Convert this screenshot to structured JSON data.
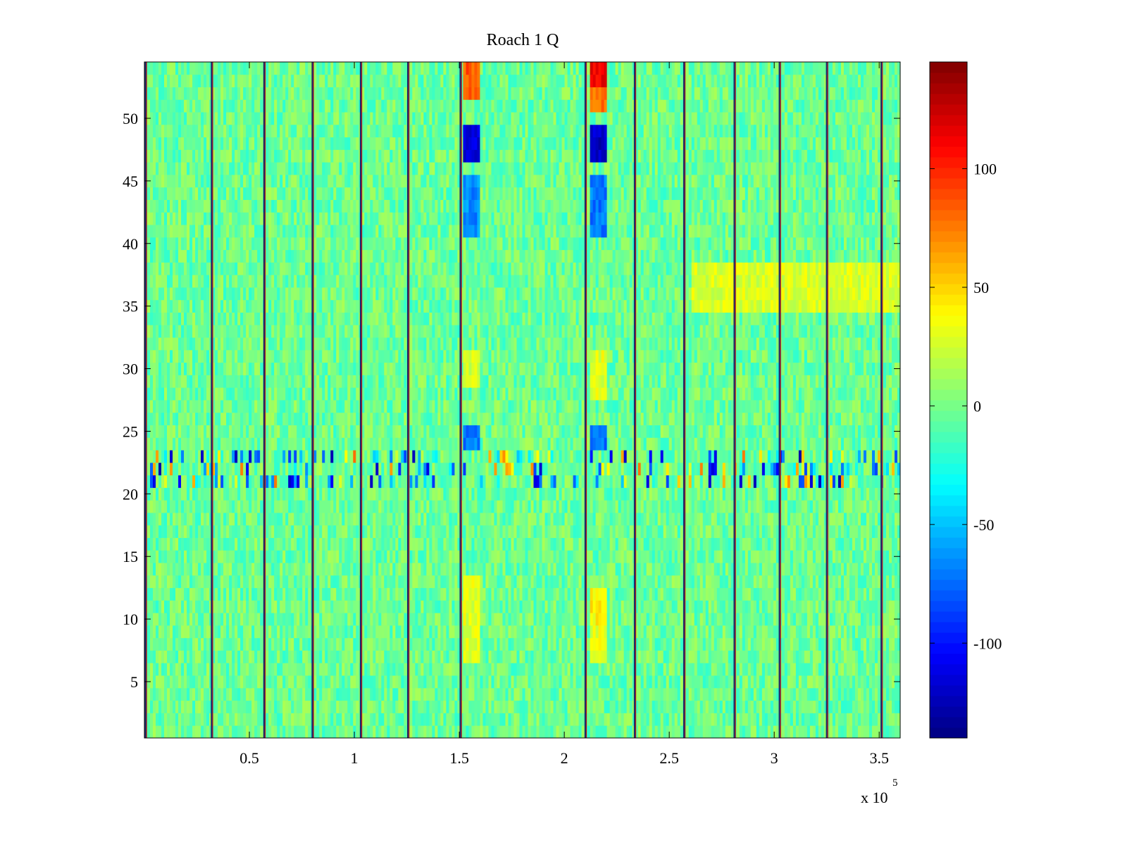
{
  "chart_data": {
    "type": "heatmap",
    "title": "Roach 1 Q",
    "xlabel": "",
    "ylabel": "",
    "x_range": [
      0,
      360000
    ],
    "y_range": [
      0.5,
      54.5
    ],
    "n_rows": 54,
    "x_exponent_label": "x 10",
    "x_exponent": "5",
    "x_ticks": [
      {
        "value": 50000,
        "label": "0.5"
      },
      {
        "value": 100000,
        "label": "1"
      },
      {
        "value": 150000,
        "label": "1.5"
      },
      {
        "value": 200000,
        "label": "2"
      },
      {
        "value": 250000,
        "label": "2.5"
      },
      {
        "value": 300000,
        "label": "3"
      },
      {
        "value": 350000,
        "label": "3.5"
      }
    ],
    "y_ticks": [
      {
        "value": 5,
        "label": "5"
      },
      {
        "value": 10,
        "label": "10"
      },
      {
        "value": 15,
        "label": "15"
      },
      {
        "value": 20,
        "label": "20"
      },
      {
        "value": 25,
        "label": "25"
      },
      {
        "value": 30,
        "label": "30"
      },
      {
        "value": 35,
        "label": "35"
      },
      {
        "value": 40,
        "label": "40"
      },
      {
        "value": 45,
        "label": "45"
      },
      {
        "value": 50,
        "label": "50"
      }
    ],
    "colormap": "jet",
    "clim": [
      -140,
      145
    ],
    "colorbar_ticks": [
      {
        "value": 100,
        "label": "100"
      },
      {
        "value": 50,
        "label": "50"
      },
      {
        "value": 0,
        "label": "0"
      },
      {
        "value": -50,
        "label": "-50"
      },
      {
        "value": -100,
        "label": "-100"
      }
    ],
    "background_value": -3,
    "noise_amplitude": 18,
    "vertical_lines_x": [
      500,
      32000,
      57000,
      80000,
      103000,
      125500,
      150500,
      210000,
      233500,
      257000,
      281000,
      302500,
      325000,
      351000
    ],
    "noisy_row_band": {
      "rows": [
        21,
        23
      ],
      "value_range": [
        -130,
        80
      ]
    },
    "features": [
      {
        "x_range": [
          152000,
          160000
        ],
        "rows": [
          52,
          54
        ],
        "value": 85
      },
      {
        "x_range": [
          152000,
          160000
        ],
        "rows": [
          47,
          49
        ],
        "value": -115
      },
      {
        "x_range": [
          152000,
          160000
        ],
        "rows": [
          41,
          45
        ],
        "value": -65
      },
      {
        "x_range": [
          152000,
          160000
        ],
        "rows": [
          24,
          25
        ],
        "value": -70
      },
      {
        "x_range": [
          152000,
          160000
        ],
        "rows": [
          29,
          31
        ],
        "value": 25
      },
      {
        "x_range": [
          152000,
          160000
        ],
        "rows": [
          10,
          13
        ],
        "value": 30
      },
      {
        "x_range": [
          152000,
          160000
        ],
        "rows": [
          7,
          9
        ],
        "value": 30
      },
      {
        "x_range": [
          212000,
          220000
        ],
        "rows": [
          53,
          54
        ],
        "value": 110
      },
      {
        "x_range": [
          212000,
          220000
        ],
        "rows": [
          51,
          52
        ],
        "value": 75
      },
      {
        "x_range": [
          212000,
          220000
        ],
        "rows": [
          47,
          49
        ],
        "value": -120
      },
      {
        "x_range": [
          212000,
          220000
        ],
        "rows": [
          41,
          45
        ],
        "value": -70
      },
      {
        "x_range": [
          212000,
          220000
        ],
        "rows": [
          24,
          25
        ],
        "value": -75
      },
      {
        "x_range": [
          212000,
          220000
        ],
        "rows": [
          28,
          31
        ],
        "value": 30
      },
      {
        "x_range": [
          212000,
          220000
        ],
        "rows": [
          10,
          12
        ],
        "value": 40
      },
      {
        "x_range": [
          212000,
          220000
        ],
        "rows": [
          7,
          9
        ],
        "value": 30
      },
      {
        "x_range": [
          260000,
          360000
        ],
        "rows": [
          35,
          38
        ],
        "value": 28
      }
    ]
  }
}
